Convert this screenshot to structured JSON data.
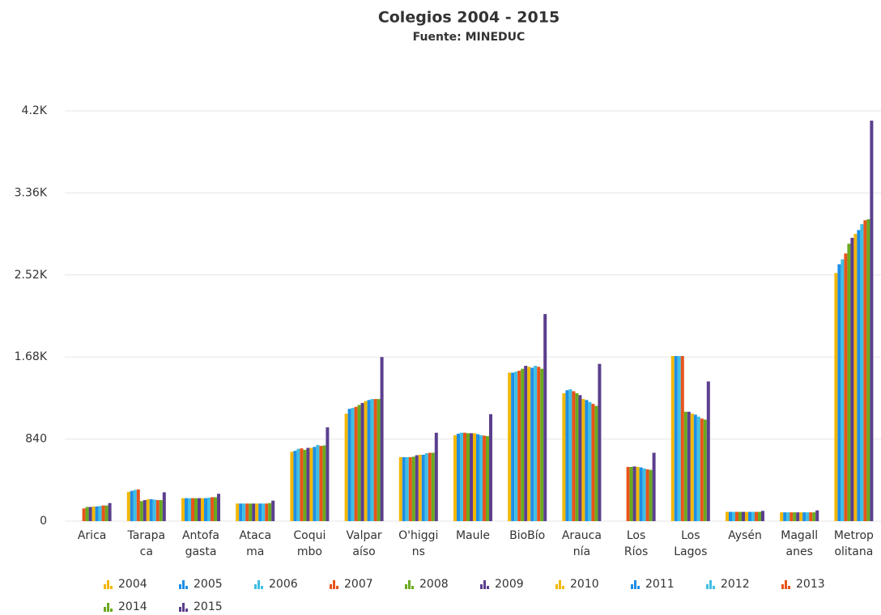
{
  "chart_data": {
    "type": "bar",
    "title": "Colegios 2004 - 2015",
    "subtitle": "Fuente: MINEDUC",
    "categories": [
      "Arica",
      "Tarapa\nca",
      "Antofa\ngasta",
      "Ataca\nma",
      "Coqui\nmbo",
      "Valpar\naíso",
      "O'higgi\nns",
      "Maule",
      "BioBío",
      "Arauca\nnía",
      "Los\nRíos",
      "Los\nLagos",
      "Aysén",
      "Magall\nanes",
      "Metrop\nolitana"
    ],
    "ylim": [
      0,
      4200
    ],
    "yticks": [
      0,
      840,
      {
        "value": 1680,
        "label": "1.68K"
      },
      {
        "value": 2520,
        "label": "2.52K"
      },
      {
        "value": 3360,
        "label": "3.36K"
      },
      {
        "value": 4200,
        "label": "4.2K"
      }
    ],
    "grid": true,
    "series": [
      {
        "name": "2004",
        "color": "#f2b705",
        "values": [
          null,
          300,
          235,
          180,
          710,
          1100,
          655,
          880,
          1520,
          1310,
          null,
          1690,
          95,
          90,
          2540
        ]
      },
      {
        "name": "2005",
        "color": "#1e8ee6",
        "values": [
          null,
          310,
          235,
          180,
          720,
          1150,
          655,
          895,
          1520,
          1340,
          null,
          1690,
          95,
          90,
          2630
        ]
      },
      {
        "name": "2006",
        "color": "#3fbfe3",
        "values": [
          null,
          320,
          235,
          180,
          740,
          1160,
          655,
          905,
          1530,
          1350,
          null,
          1690,
          95,
          90,
          2680
        ]
      },
      {
        "name": "2007",
        "color": "#e8541a",
        "values": [
          130,
          325,
          235,
          180,
          745,
          1170,
          655,
          905,
          1540,
          1330,
          555,
          1690,
          95,
          90,
          2740
        ]
      },
      {
        "name": "2008",
        "color": "#6aaa1e",
        "values": [
          145,
          205,
          235,
          180,
          730,
          1190,
          660,
          900,
          1560,
          1310,
          555,
          1120,
          95,
          90,
          2840
        ]
      },
      {
        "name": "2009",
        "color": "#5b3f8e",
        "values": [
          145,
          215,
          235,
          180,
          750,
          1210,
          675,
          900,
          1590,
          1290,
          560,
          1120,
          95,
          90,
          2900
        ]
      },
      {
        "name": "2010",
        "color": "#f2b705",
        "values": [
          150,
          225,
          235,
          180,
          750,
          1230,
          680,
          900,
          1580,
          1250,
          555,
          1100,
          95,
          90,
          2940
        ]
      },
      {
        "name": "2011",
        "color": "#1e8ee6",
        "values": [
          150,
          225,
          235,
          180,
          760,
          1240,
          680,
          890,
          1570,
          1240,
          550,
          1090,
          95,
          90,
          2980
        ]
      },
      {
        "name": "2012",
        "color": "#3fbfe3",
        "values": [
          155,
          220,
          240,
          180,
          780,
          1250,
          695,
          880,
          1590,
          1220,
          540,
          1070,
          95,
          90,
          3040
        ]
      },
      {
        "name": "2013",
        "color": "#e8541a",
        "values": [
          160,
          215,
          245,
          180,
          770,
          1250,
          700,
          875,
          1580,
          1200,
          530,
          1050,
          95,
          90,
          3080
        ]
      },
      {
        "name": "2014",
        "color": "#6aaa1e",
        "values": [
          160,
          215,
          245,
          185,
          775,
          1250,
          700,
          870,
          1560,
          1180,
          525,
          1040,
          95,
          90,
          3090
        ]
      },
      {
        "name": "2015",
        "color": "#5b3f8e",
        "values": [
          185,
          295,
          280,
          210,
          960,
          1680,
          905,
          1095,
          2120,
          1610,
          700,
          1430,
          105,
          110,
          4100
        ]
      }
    ]
  }
}
